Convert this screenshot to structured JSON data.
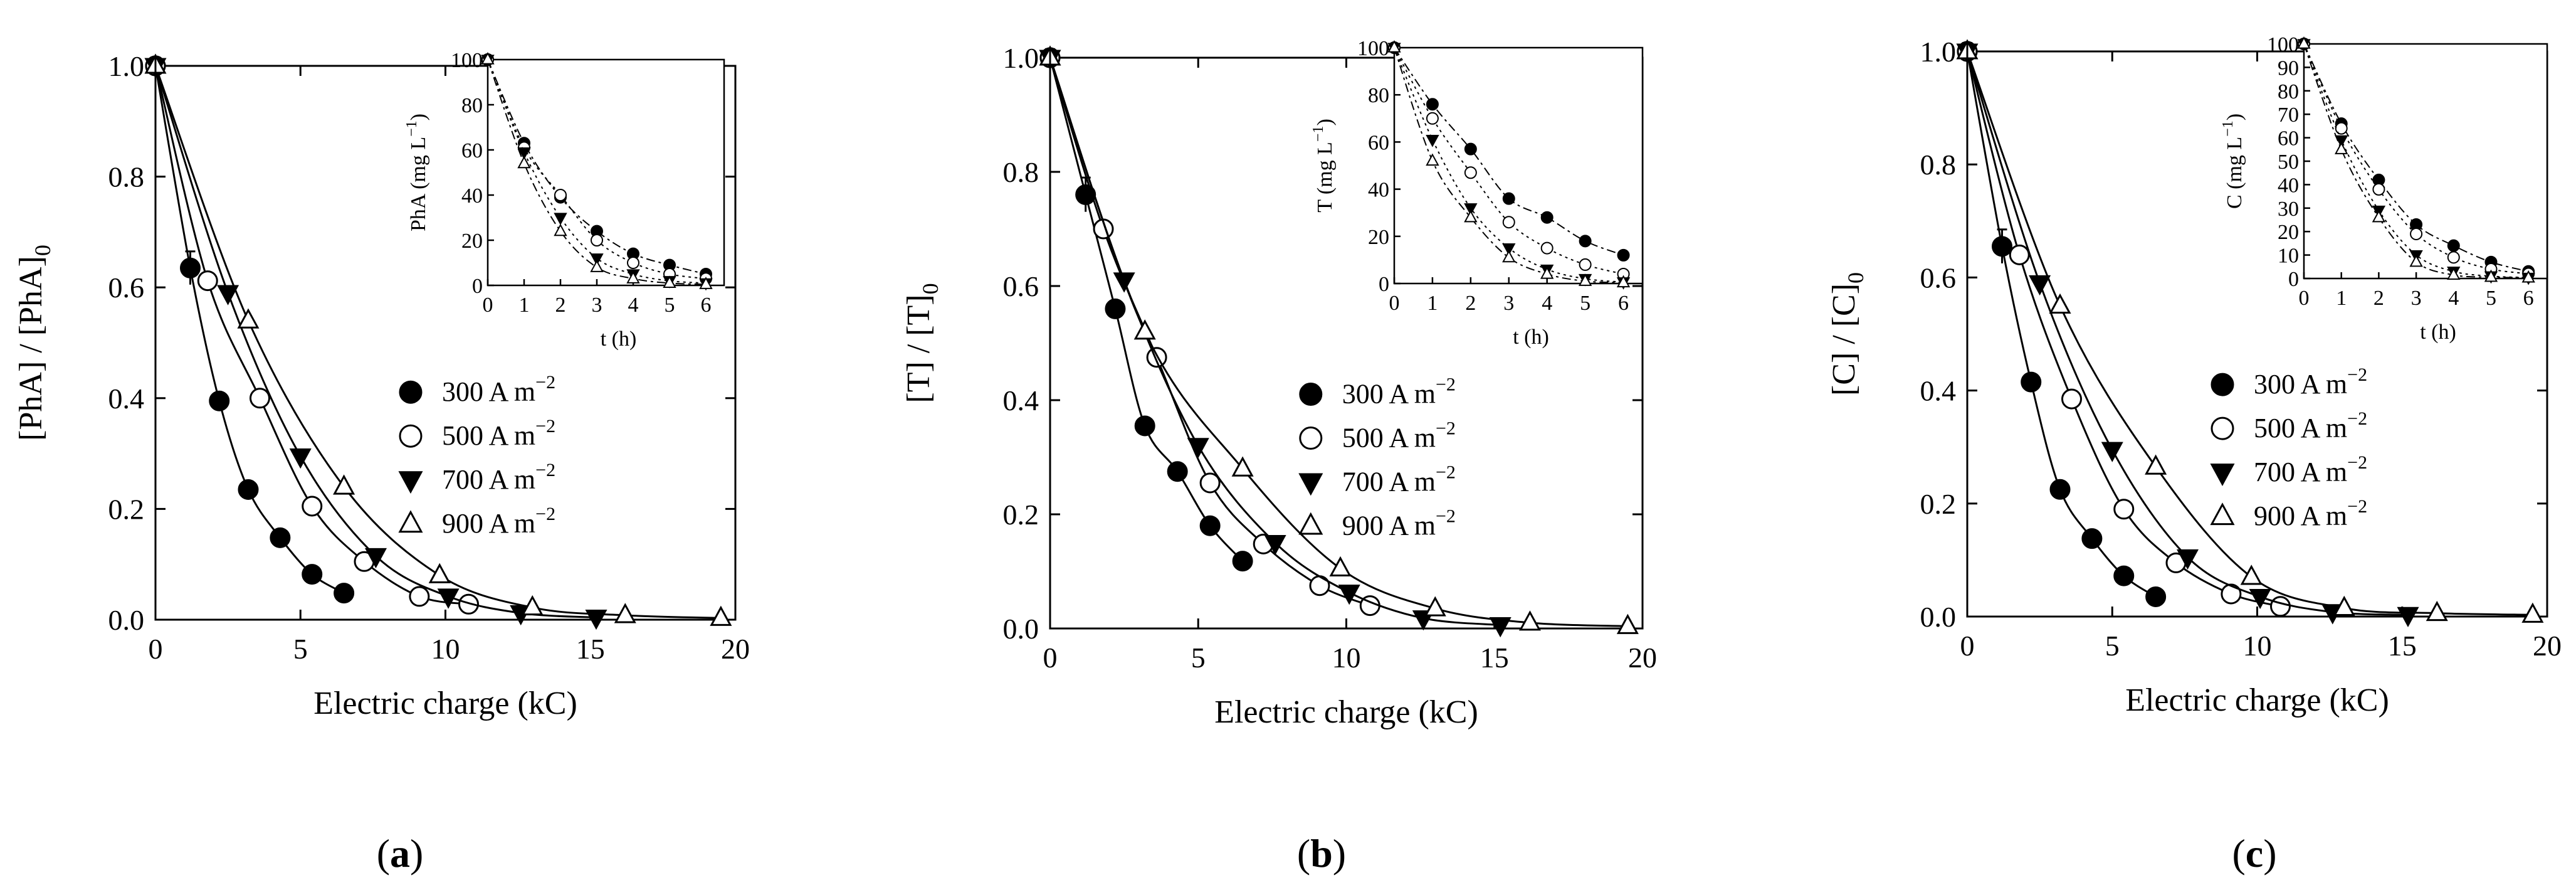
{
  "chart_data": [
    {
      "type": "line",
      "title": "",
      "caption_letter": "a",
      "xlabel": "Electric charge (kC)",
      "ylabel_main": "[PhA] / [PhA]",
      "ylabel_sub": "0",
      "xlim": [
        0,
        20
      ],
      "ylim": [
        0,
        1.0
      ],
      "xticks": [
        "0",
        "5",
        "10",
        "15",
        "20"
      ],
      "yticks": [
        "0.0",
        "0.2",
        "0.4",
        "0.6",
        "0.8",
        "1.0"
      ],
      "legend_position": "center-right",
      "series": [
        {
          "name": "300 A m",
          "superscript": "−2",
          "marker": "filled-circle",
          "dash": "none",
          "x": [
            0,
            1.2,
            2.2,
            3.2,
            4.3,
            5.4,
            6.5
          ],
          "y": [
            1.0,
            0.635,
            0.395,
            0.235,
            0.148,
            0.082,
            0.048
          ]
        },
        {
          "name": "500 A m",
          "superscript": "−2",
          "marker": "open-circle",
          "dash": "none",
          "x": [
            0,
            1.8,
            3.6,
            5.4,
            7.2,
            9.1,
            10.8
          ],
          "y": [
            1.0,
            0.612,
            0.4,
            0.205,
            0.105,
            0.042,
            0.028
          ]
        },
        {
          "name": "700 A m",
          "superscript": "−2",
          "marker": "filled-triangle-down",
          "dash": "none",
          "x": [
            0,
            2.5,
            5.0,
            7.6,
            10.1,
            12.6,
            15.2
          ],
          "y": [
            1.0,
            0.59,
            0.295,
            0.115,
            0.042,
            0.012,
            0.004
          ]
        },
        {
          "name": "900 A m",
          "superscript": "−2",
          "marker": "open-triangle-up",
          "dash": "none",
          "x": [
            0,
            3.2,
            6.5,
            9.8,
            13.0,
            16.2,
            19.5
          ],
          "y": [
            1.0,
            0.54,
            0.24,
            0.08,
            0.022,
            0.008,
            0.003
          ]
        }
      ],
      "inset": {
        "type": "line",
        "xlabel": "t (h)",
        "ylabel_main": "PhA (mg L",
        "ylabel_sup": "−1",
        "ylabel_end": ")",
        "xlim": [
          0,
          6.5
        ],
        "ylim": [
          0,
          100
        ],
        "xticks": [
          "0",
          "1",
          "2",
          "3",
          "4",
          "5",
          "6"
        ],
        "yticks": [
          "0",
          "20",
          "40",
          "60",
          "80",
          "100"
        ],
        "series": [
          {
            "name": "300 A m−2",
            "marker": "filled-circle",
            "dash": "dashdot",
            "x": [
              0,
              1,
              2,
              3,
              4,
              5,
              6
            ],
            "y": [
              100,
              63,
              39,
              24,
              14,
              9,
              5
            ]
          },
          {
            "name": "500 A m−2",
            "marker": "open-circle",
            "dash": "dotted",
            "x": [
              0,
              1,
              2,
              3,
              4,
              5,
              6
            ],
            "y": [
              100,
              61,
              40,
              20,
              10,
              5,
              3
            ]
          },
          {
            "name": "700 A m−2",
            "marker": "filled-triangle-down",
            "dash": "dotted",
            "x": [
              0,
              1,
              2,
              3,
              4,
              5,
              6
            ],
            "y": [
              100,
              59,
              30,
              12,
              5,
              2,
              1
            ]
          },
          {
            "name": "900 A m−2",
            "marker": "open-triangle-up",
            "dash": "dashdot",
            "x": [
              0,
              1,
              2,
              3,
              4,
              5,
              6
            ],
            "y": [
              100,
              54,
              24,
              8,
              3,
              1,
              0.5
            ]
          }
        ]
      }
    },
    {
      "type": "line",
      "title": "",
      "caption_letter": "b",
      "xlabel": "Electric charge (kC)",
      "ylabel_main": "[T] / [T]",
      "ylabel_sub": "0",
      "xlim": [
        0,
        20
      ],
      "ylim": [
        0,
        1.0
      ],
      "xticks": [
        "0",
        "5",
        "10",
        "15",
        "20"
      ],
      "yticks": [
        "0.0",
        "0.2",
        "0.4",
        "0.6",
        "0.8",
        "1.0"
      ],
      "legend_position": "center-right",
      "series": [
        {
          "name": "300 A m",
          "superscript": "−2",
          "marker": "filled-circle",
          "dash": "none",
          "x": [
            0,
            1.2,
            2.2,
            3.2,
            4.3,
            5.4,
            6.5
          ],
          "y": [
            1.0,
            0.76,
            0.56,
            0.355,
            0.275,
            0.18,
            0.118
          ]
        },
        {
          "name": "500 A m",
          "superscript": "−2",
          "marker": "open-circle",
          "dash": "none",
          "x": [
            0,
            1.8,
            3.6,
            5.4,
            7.2,
            9.1,
            10.8
          ],
          "y": [
            1.0,
            0.7,
            0.475,
            0.255,
            0.148,
            0.075,
            0.04
          ]
        },
        {
          "name": "700 A m",
          "superscript": "−2",
          "marker": "filled-triangle-down",
          "dash": "none",
          "x": [
            0,
            2.5,
            5.0,
            7.6,
            10.1,
            12.6,
            15.2
          ],
          "y": [
            1.0,
            0.61,
            0.32,
            0.15,
            0.063,
            0.018,
            0.006
          ]
        },
        {
          "name": "900 A m",
          "superscript": "−2",
          "marker": "open-triangle-up",
          "dash": "none",
          "x": [
            0,
            3.2,
            6.5,
            9.8,
            13.0,
            16.2,
            19.5
          ],
          "y": [
            1.0,
            0.52,
            0.28,
            0.105,
            0.035,
            0.01,
            0.004
          ]
        }
      ],
      "inset": {
        "type": "line",
        "xlabel": "t (h)",
        "ylabel_main": "T (mg L",
        "ylabel_sup": "−1",
        "ylabel_end": ")",
        "xlim": [
          0,
          6.5
        ],
        "ylim": [
          0,
          100
        ],
        "xticks": [
          "0",
          "1",
          "2",
          "3",
          "4",
          "5",
          "6"
        ],
        "yticks": [
          "0",
          "20",
          "40",
          "60",
          "80",
          "100"
        ],
        "series": [
          {
            "name": "300 A m−2",
            "marker": "filled-circle",
            "dash": "dashdot",
            "x": [
              0,
              1,
              2,
              3,
              4,
              5,
              6
            ],
            "y": [
              100,
              76,
              57,
              36,
              28,
              18,
              12
            ]
          },
          {
            "name": "500 A m−2",
            "marker": "open-circle",
            "dash": "dotted",
            "x": [
              0,
              1,
              2,
              3,
              4,
              5,
              6
            ],
            "y": [
              100,
              70,
              47,
              26,
              15,
              8,
              4
            ]
          },
          {
            "name": "700 A m−2",
            "marker": "filled-triangle-down",
            "dash": "dotted",
            "x": [
              0,
              1,
              2,
              3,
              4,
              5,
              6
            ],
            "y": [
              100,
              61,
              32,
              15,
              6,
              2,
              0.6
            ]
          },
          {
            "name": "900 A m−2",
            "marker": "open-triangle-up",
            "dash": "dashdot",
            "x": [
              0,
              1,
              2,
              3,
              4,
              5,
              6
            ],
            "y": [
              100,
              52,
              28,
              11,
              4,
              1,
              0.4
            ]
          }
        ]
      }
    },
    {
      "type": "line",
      "title": "",
      "caption_letter": "c",
      "xlabel": "Electric charge (kC)",
      "ylabel_main": "[C] / [C]",
      "ylabel_sub": "0",
      "xlim": [
        0,
        20
      ],
      "ylim": [
        0,
        1.0
      ],
      "xticks": [
        "0",
        "5",
        "10",
        "15",
        "20"
      ],
      "yticks": [
        "0.0",
        "0.2",
        "0.4",
        "0.6",
        "0.8",
        "1.0"
      ],
      "legend_position": "center-right",
      "series": [
        {
          "name": "300 A m",
          "superscript": "−2",
          "marker": "filled-circle",
          "dash": "none",
          "x": [
            0,
            1.2,
            2.2,
            3.2,
            4.3,
            5.4,
            6.5
          ],
          "y": [
            1.0,
            0.655,
            0.415,
            0.225,
            0.138,
            0.072,
            0.035
          ]
        },
        {
          "name": "500 A m",
          "superscript": "−2",
          "marker": "open-circle",
          "dash": "none",
          "x": [
            0,
            1.8,
            3.6,
            5.4,
            7.2,
            9.1,
            10.8
          ],
          "y": [
            1.0,
            0.64,
            0.385,
            0.19,
            0.095,
            0.04,
            0.018
          ]
        },
        {
          "name": "700 A m",
          "superscript": "−2",
          "marker": "filled-triangle-down",
          "dash": "none",
          "x": [
            0,
            2.5,
            5.0,
            7.6,
            10.1,
            12.6,
            15.2
          ],
          "y": [
            1.0,
            0.59,
            0.295,
            0.105,
            0.035,
            0.008,
            0.003
          ]
        },
        {
          "name": "900 A m",
          "superscript": "−2",
          "marker": "open-triangle-up",
          "dash": "none",
          "x": [
            0,
            3.2,
            6.5,
            9.8,
            13.0,
            16.2,
            19.5
          ],
          "y": [
            1.0,
            0.55,
            0.265,
            0.07,
            0.015,
            0.006,
            0.003
          ]
        }
      ],
      "inset": {
        "type": "line",
        "xlabel": "t (h)",
        "ylabel_main": "C (mg L",
        "ylabel_sup": "−1",
        "ylabel_end": ")",
        "xlim": [
          0,
          6.5
        ],
        "ylim": [
          0,
          100
        ],
        "xticks": [
          "0",
          "1",
          "2",
          "3",
          "4",
          "5",
          "6"
        ],
        "yticks": [
          "0",
          "10",
          "20",
          "30",
          "40",
          "50",
          "60",
          "70",
          "80",
          "90",
          "100"
        ],
        "series": [
          {
            "name": "300 A m−2",
            "marker": "filled-circle",
            "dash": "dashdot",
            "x": [
              0,
              1,
              2,
              3,
              4,
              5,
              6
            ],
            "y": [
              100,
              66,
              42,
              23,
              14,
              7,
              3
            ]
          },
          {
            "name": "500 A m−2",
            "marker": "open-circle",
            "dash": "dotted",
            "x": [
              0,
              1,
              2,
              3,
              4,
              5,
              6
            ],
            "y": [
              100,
              64,
              38,
              19,
              9,
              4,
              2
            ]
          },
          {
            "name": "700 A m−2",
            "marker": "filled-triangle-down",
            "dash": "dotted",
            "x": [
              0,
              1,
              2,
              3,
              4,
              5,
              6
            ],
            "y": [
              100,
              59,
              29,
              10,
              3,
              1,
              0.4
            ]
          },
          {
            "name": "900 A m−2",
            "marker": "open-triangle-up",
            "dash": "dashdot",
            "x": [
              0,
              1,
              2,
              3,
              4,
              5,
              6
            ],
            "y": [
              100,
              55,
              26,
              7,
              1.5,
              0.6,
              0.3
            ]
          }
        ]
      }
    }
  ]
}
